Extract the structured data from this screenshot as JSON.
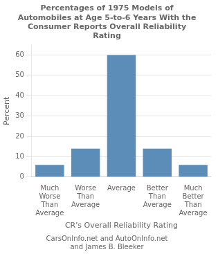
{
  "chart_data": {
    "type": "bar",
    "title": "Percentages of 1975 Models of\nAutomobiles at Age 5-to-6 Years With the\nConsumer Reports Overall Reliability\nRating",
    "xlabel": "CR's Overall Reliability Rating",
    "ylabel": "Percent",
    "footnote": "CarsOnInfo.net and AutoOnInfo.net\nand James B. Bleeker",
    "categories": [
      "Much\nWorse\nThan\nAverage",
      "Worse\nThan\nAverage",
      "Average",
      "Better\nThan\nAverage",
      "Much\nBetter\nThan\nAverage"
    ],
    "values": [
      6,
      14,
      60,
      14,
      6
    ],
    "color": "#5B8DB8",
    "ylim": [
      0,
      65
    ],
    "yticks": [
      0,
      10,
      20,
      30,
      40,
      50,
      60
    ],
    "grid": true
  }
}
